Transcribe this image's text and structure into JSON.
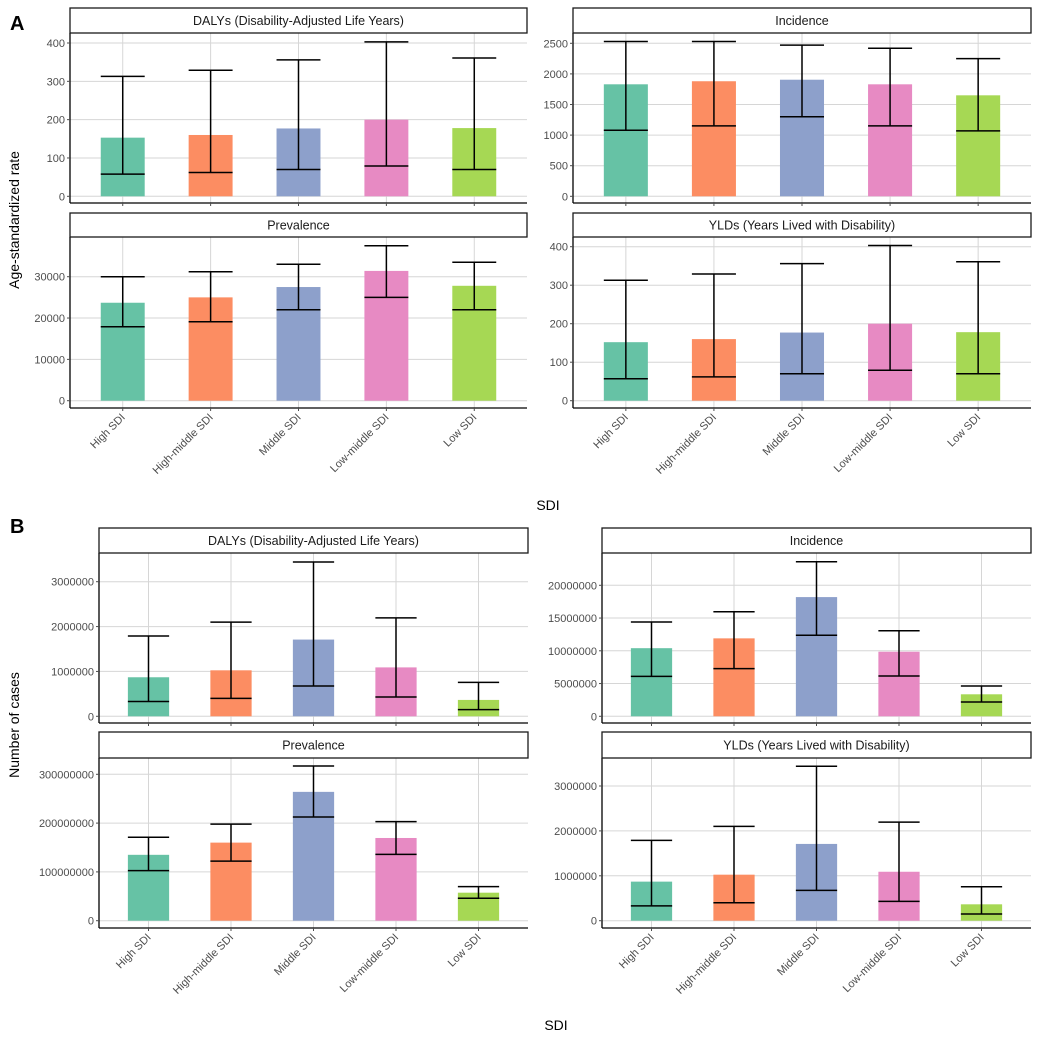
{
  "figures": [
    {
      "label": "A",
      "ylabel": "Age-standardized rate",
      "xlabel": "SDI"
    },
    {
      "label": "B",
      "ylabel": "Number of cases",
      "xlabel": "SDI"
    }
  ],
  "colors": [
    "#66C2A5",
    "#FC8D62",
    "#8DA0CB",
    "#E78AC3",
    "#A6D854"
  ],
  "chart_data": [
    {
      "type": "bar",
      "figure": "A",
      "title": "DALYs (Disability-Adjusted Life Years)",
      "ylabel": "Age-standardized rate",
      "xlabel": "SDI",
      "categories": [
        "High SDI",
        "High-middle SDI",
        "Middle SDI",
        "Low-middle SDI",
        "Low SDI"
      ],
      "values": [
        153,
        160,
        177,
        200,
        178
      ],
      "lower": [
        58,
        62,
        70,
        79,
        70
      ],
      "upper": [
        313,
        329,
        356,
        403,
        361
      ],
      "yticks": [
        "0",
        "100",
        "200",
        "300",
        "400"
      ],
      "ytick_values": [
        0,
        100,
        200,
        300,
        400
      ],
      "ylim": [
        0,
        425
      ],
      "grid": true
    },
    {
      "type": "bar",
      "figure": "A",
      "title": "Incidence",
      "ylabel": "Age-standardized rate",
      "xlabel": "SDI",
      "categories": [
        "High SDI",
        "High-middle SDI",
        "Middle SDI",
        "Low-middle SDI",
        "Low SDI"
      ],
      "values": [
        1830,
        1880,
        1905,
        1830,
        1650
      ],
      "lower": [
        1080,
        1150,
        1300,
        1150,
        1070
      ],
      "upper": [
        2530,
        2530,
        2470,
        2420,
        2250
      ],
      "yticks": [
        "0",
        "500",
        "1000",
        "1500",
        "2000",
        "2500"
      ],
      "ytick_values": [
        0,
        500,
        1000,
        1500,
        2000,
        2500
      ],
      "ylim": [
        0,
        2650
      ],
      "grid": true
    },
    {
      "type": "bar",
      "figure": "A",
      "title": "Prevalence",
      "ylabel": "Age-standardized rate",
      "xlabel": "SDI",
      "categories": [
        "High SDI",
        "High-middle SDI",
        "Middle SDI",
        "Low-middle SDI",
        "Low SDI"
      ],
      "values": [
        23700,
        25000,
        27500,
        31400,
        27800
      ],
      "lower": [
        17900,
        19100,
        22000,
        25000,
        22000
      ],
      "upper": [
        30000,
        31200,
        33000,
        37500,
        33500
      ],
      "yticks": [
        "0",
        "10000",
        "20000",
        "30000"
      ],
      "ytick_values": [
        0,
        10000,
        20000,
        30000
      ],
      "ylim": [
        0,
        39400
      ],
      "grid": true
    },
    {
      "type": "bar",
      "figure": "A",
      "title": "YLDs (Years Lived with Disability)",
      "ylabel": "Age-standardized rate",
      "xlabel": "SDI",
      "categories": [
        "High SDI",
        "High-middle SDI",
        "Middle SDI",
        "Low-middle SDI",
        "Low SDI"
      ],
      "values": [
        152,
        160,
        177,
        200,
        178
      ],
      "lower": [
        57,
        62,
        70,
        79,
        70
      ],
      "upper": [
        313,
        329,
        356,
        403,
        361
      ],
      "yticks": [
        "0",
        "100",
        "200",
        "300",
        "400"
      ],
      "ytick_values": [
        0,
        100,
        200,
        300,
        400
      ],
      "ylim": [
        0,
        425
      ],
      "grid": true
    },
    {
      "type": "bar",
      "figure": "B",
      "title": "DALYs (Disability-Adjusted Life Years)",
      "ylabel": "Number of cases",
      "xlabel": "SDI",
      "categories": [
        "High SDI",
        "High-middle SDI",
        "Middle SDI",
        "Low-middle SDI",
        "Low SDI"
      ],
      "values": [
        870000,
        1025000,
        1710000,
        1090000,
        365000
      ],
      "lower": [
        330000,
        400000,
        675000,
        430000,
        148000
      ],
      "upper": [
        1790000,
        2100000,
        3440000,
        2195000,
        757000
      ],
      "yticks": [
        "0",
        "1000000",
        "2000000",
        "3000000"
      ],
      "ytick_values": [
        0,
        1000000,
        2000000,
        3000000
      ],
      "ylim": [
        0,
        3610000
      ],
      "grid": true
    },
    {
      "type": "bar",
      "figure": "B",
      "title": "Incidence",
      "ylabel": "Number of cases",
      "xlabel": "SDI",
      "categories": [
        "High SDI",
        "High-middle SDI",
        "Middle SDI",
        "Low-middle SDI",
        "Low SDI"
      ],
      "values": [
        10400000,
        11900000,
        18200000,
        9860000,
        3360000
      ],
      "lower": [
        6100000,
        7270000,
        12370000,
        6150000,
        2180000
      ],
      "upper": [
        14400000,
        15970000,
        23600000,
        13070000,
        4630000
      ],
      "yticks": [
        "0",
        "5000000",
        "10000000",
        "15000000",
        "20000000"
      ],
      "ytick_values": [
        0,
        5000000,
        10000000,
        15000000,
        20000000
      ],
      "ylim": [
        0,
        24800000
      ],
      "grid": true
    },
    {
      "type": "bar",
      "figure": "B",
      "title": "Prevalence",
      "ylabel": "Number of cases",
      "xlabel": "SDI",
      "categories": [
        "High SDI",
        "High-middle SDI",
        "Middle SDI",
        "Low-middle SDI",
        "Low SDI"
      ],
      "values": [
        135000000,
        160000000,
        264000000,
        169500000,
        57400000
      ],
      "lower": [
        102500000,
        122000000,
        212500000,
        136000000,
        45900000
      ],
      "upper": [
        171000000,
        198000000,
        317000000,
        203000000,
        69700000
      ],
      "yticks": [
        "0",
        "100000000",
        "200000000",
        "300000000"
      ],
      "ytick_values": [
        0,
        100000000,
        200000000,
        300000000
      ],
      "ylim": [
        0,
        333000000
      ],
      "grid": true
    },
    {
      "type": "bar",
      "figure": "B",
      "title": "YLDs (Years Lived with Disability)",
      "ylabel": "Number of cases",
      "xlabel": "SDI",
      "categories": [
        "High SDI",
        "High-middle SDI",
        "Middle SDI",
        "Low-middle SDI",
        "Low SDI"
      ],
      "values": [
        870000,
        1025000,
        1710000,
        1090000,
        365000
      ],
      "lower": [
        330000,
        400000,
        675000,
        430000,
        148000
      ],
      "upper": [
        1790000,
        2100000,
        3440000,
        2195000,
        757000
      ],
      "yticks": [
        "0",
        "1000000",
        "2000000",
        "3000000"
      ],
      "ytick_values": [
        0,
        1000000,
        2000000,
        3000000
      ],
      "ylim": [
        0,
        3610000
      ],
      "grid": true
    }
  ]
}
